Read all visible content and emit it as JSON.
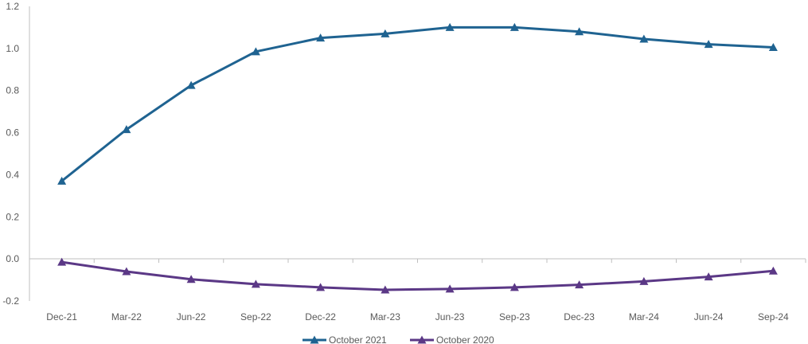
{
  "chart_data": {
    "type": "line",
    "categories": [
      "Dec-21",
      "Mar-22",
      "Jun-22",
      "Sep-22",
      "Dec-22",
      "Mar-23",
      "Jun-23",
      "Sep-23",
      "Dec-23",
      "Mar-24",
      "Jun-24",
      "Sep-24"
    ],
    "series": [
      {
        "name": "October 2021",
        "color": "#1f6391",
        "marker": "triangle",
        "values": [
          0.37,
          0.615,
          0.825,
          0.985,
          1.05,
          1.07,
          1.1,
          1.1,
          1.08,
          1.045,
          1.02,
          1.005
        ]
      },
      {
        "name": "October 2020",
        "color": "#5b3886",
        "marker": "triangle",
        "values": [
          -0.015,
          -0.06,
          -0.097,
          -0.12,
          -0.135,
          -0.147,
          -0.143,
          -0.135,
          -0.123,
          -0.107,
          -0.085,
          -0.057
        ]
      }
    ],
    "ylim": [
      -0.2,
      1.2
    ],
    "yticks": [
      "-0.2",
      "0.0",
      "0.2",
      "0.4",
      "0.6",
      "0.8",
      "1.0",
      "1.2"
    ],
    "ytick_values": [
      -0.2,
      0.0,
      0.2,
      0.4,
      0.6,
      0.8,
      1.0,
      1.2
    ],
    "grid": false,
    "legend_position": "bottom",
    "title": "",
    "xlabel": "",
    "ylabel": ""
  }
}
